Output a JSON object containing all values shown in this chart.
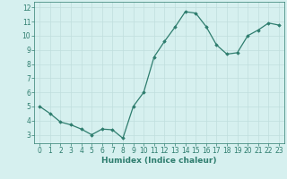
{
  "x": [
    0,
    1,
    2,
    3,
    4,
    5,
    6,
    7,
    8,
    9,
    10,
    11,
    12,
    13,
    14,
    15,
    16,
    17,
    18,
    19,
    20,
    21,
    22,
    23
  ],
  "y": [
    5.0,
    4.5,
    3.9,
    3.7,
    3.4,
    3.0,
    3.4,
    3.35,
    2.75,
    5.0,
    6.0,
    8.5,
    9.6,
    10.6,
    11.7,
    11.6,
    10.65,
    9.35,
    8.7,
    8.8,
    10.0,
    10.4,
    10.9,
    10.75
  ],
  "line_color": "#2e7d6e",
  "marker": "D",
  "marker_size": 1.8,
  "bg_color": "#d6f0ef",
  "grid_color": "#c0dedd",
  "xlabel": "Humidex (Indice chaleur)",
  "xlabel_fontsize": 6.5,
  "tick_fontsize": 5.5,
  "ylim": [
    2.4,
    12.4
  ],
  "xlim": [
    -0.5,
    23.5
  ],
  "yticks": [
    3,
    4,
    5,
    6,
    7,
    8,
    9,
    10,
    11,
    12
  ],
  "xticks": [
    0,
    1,
    2,
    3,
    4,
    5,
    6,
    7,
    8,
    9,
    10,
    11,
    12,
    13,
    14,
    15,
    16,
    17,
    18,
    19,
    20,
    21,
    22,
    23
  ],
  "line_width": 0.9
}
